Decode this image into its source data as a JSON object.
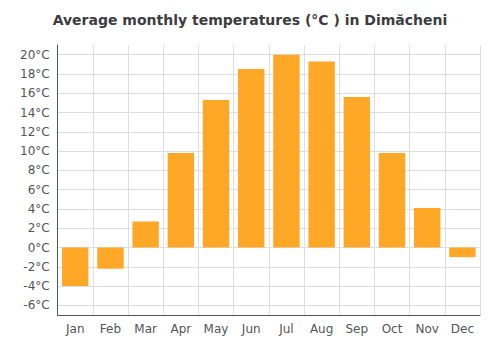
{
  "chart_data": {
    "type": "bar",
    "title": "Average monthly temperatures (°C ) in Dimăcheni",
    "categories": [
      "Jan",
      "Feb",
      "Mar",
      "Apr",
      "May",
      "Jun",
      "Jul",
      "Aug",
      "Sep",
      "Oct",
      "Nov",
      "Dec"
    ],
    "values": [
      -4.0,
      -2.2,
      2.7,
      9.8,
      15.3,
      18.5,
      20.0,
      19.3,
      15.6,
      9.8,
      4.1,
      -1.0
    ],
    "color": "#FFA726",
    "ylim": [
      -7,
      21
    ],
    "yticks": [
      {
        "value": -6,
        "label": "-6°C"
      },
      {
        "value": -4,
        "label": "-4°C"
      },
      {
        "value": -2,
        "label": "-2°C"
      },
      {
        "value": 0,
        "label": "0°C"
      },
      {
        "value": 2,
        "label": "2°C"
      },
      {
        "value": 4,
        "label": "4°C"
      },
      {
        "value": 6,
        "label": "6°C"
      },
      {
        "value": 8,
        "label": "8°C"
      },
      {
        "value": 10,
        "label": "10°C"
      },
      {
        "value": 12,
        "label": "12°C"
      },
      {
        "value": 14,
        "label": "14°C"
      },
      {
        "value": 16,
        "label": "16°C"
      },
      {
        "value": 18,
        "label": "18°C"
      },
      {
        "value": 20,
        "label": "20°C"
      }
    ],
    "grid": true
  }
}
